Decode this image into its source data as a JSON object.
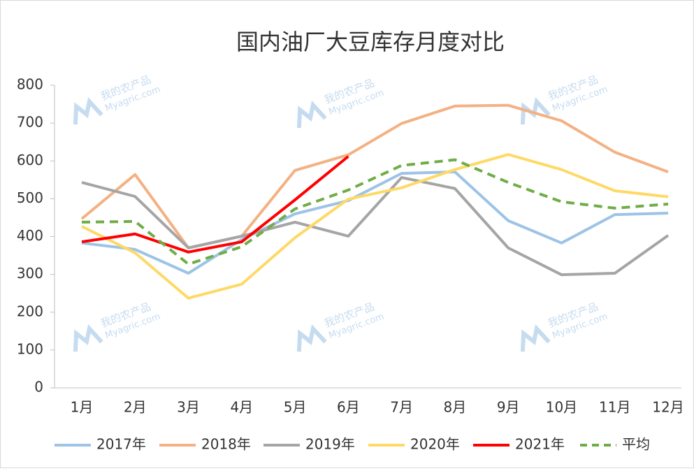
{
  "chart_data": {
    "type": "line",
    "title": "国内油厂大豆库存月度对比",
    "categories": [
      "1月",
      "2月",
      "3月",
      "4月",
      "5月",
      "6月",
      "7月",
      "8月",
      "9月",
      "10月",
      "11月",
      "12月"
    ],
    "series": [
      {
        "name": "2017年",
        "color": "#9dc3e6",
        "values": [
          383,
          366,
          303,
          392,
          460,
          495,
          567,
          571,
          442,
          383,
          458,
          462
        ]
      },
      {
        "name": "2018年",
        "color": "#f4b183",
        "values": [
          447,
          564,
          370,
          401,
          575,
          616,
          699,
          745,
          747,
          706,
          623,
          571
        ]
      },
      {
        "name": "2019年",
        "color": "#a5a5a5",
        "values": [
          543,
          506,
          370,
          401,
          438,
          401,
          556,
          527,
          370,
          299,
          303,
          403
        ]
      },
      {
        "name": "2020年",
        "color": "#ffd966",
        "values": [
          427,
          357,
          237,
          274,
          397,
          499,
          529,
          577,
          617,
          577,
          521,
          505
        ]
      },
      {
        "name": "2021年",
        "color": "#ff0000",
        "values": [
          386,
          407,
          359,
          386,
          497,
          612,
          null,
          null,
          null,
          null,
          null,
          null
        ]
      },
      {
        "name": "平均",
        "color": "#70ad47",
        "dashed": true,
        "values": [
          438,
          440,
          327,
          373,
          473,
          523,
          588,
          603,
          543,
          492,
          475,
          486
        ]
      }
    ],
    "ylim": [
      0,
      800
    ],
    "yticks": [
      0,
      100,
      200,
      300,
      400,
      500,
      600,
      700,
      800
    ],
    "grid": false,
    "legend": "bottom",
    "watermark": [
      "我的农产品",
      "Myagric.com"
    ]
  }
}
